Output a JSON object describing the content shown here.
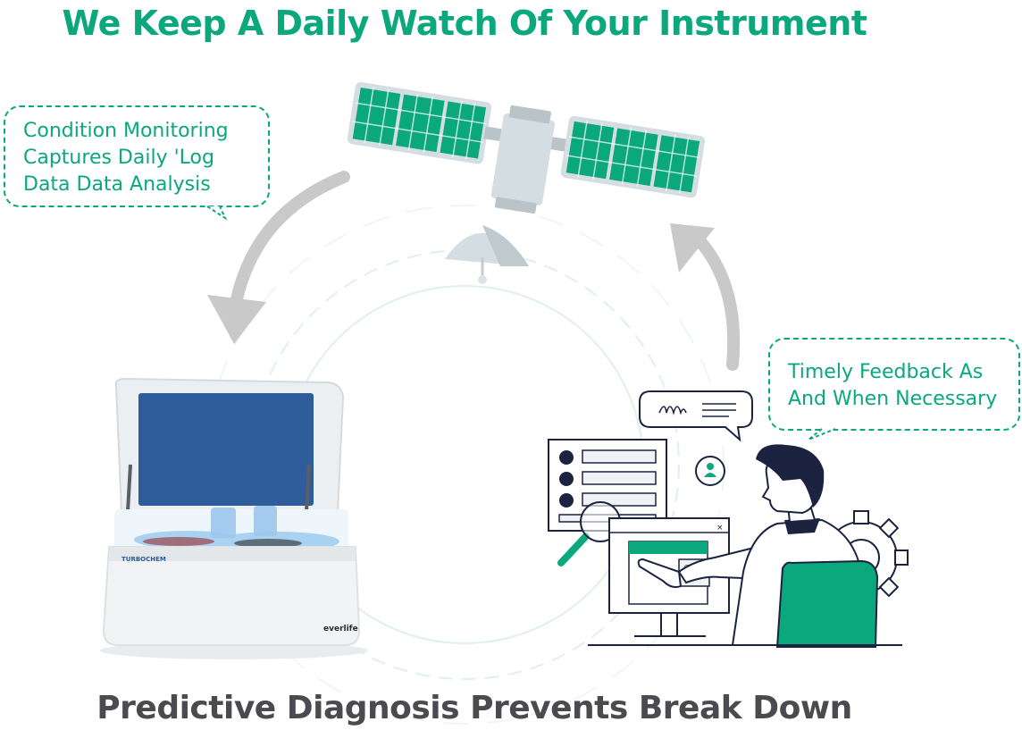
{
  "title": "We Keep A Daily Watch Of Your Instrument",
  "footer": "Predictive Diagnosis Prevents Break Down",
  "bubble_left": {
    "lines": [
      "Condition Monitoring",
      "Captures Daily 'Log",
      "Data Data Analysis"
    ]
  },
  "bubble_right": {
    "lines": [
      "Timely Feedback As",
      "And When Necessary"
    ]
  },
  "analyzer": {
    "brand_label": "TURBOCHEM",
    "logo_label": "everlife"
  },
  "colors": {
    "accent": "#0aa87c",
    "arrow": "#c9c9c9",
    "navy": "#1c2340",
    "lid_blue": "#2f5d9b",
    "footer_text": "#4b4b4f"
  }
}
